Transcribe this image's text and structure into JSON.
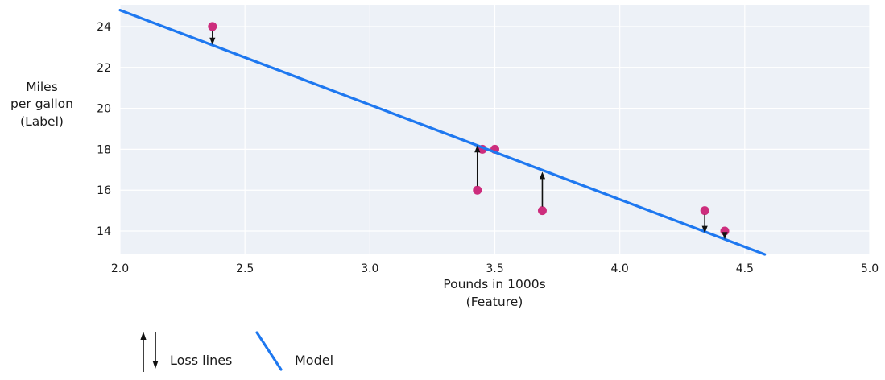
{
  "colors": {
    "model_line": "#1e78f0",
    "data_point": "#cd2d7d",
    "plot_background": "#edf1f7",
    "gridline": "#ffffff",
    "text": "#1a1a1a",
    "loss_arrow": "#111111",
    "page_background": "#ffffff"
  },
  "chart_data": {
    "type": "scatter",
    "title": "",
    "xlabel": "Pounds in 1000s\n(Feature)",
    "ylabel": "Miles\nper gallon\n(Label)",
    "xlim": [
      2.0,
      5.0
    ],
    "ylim": [
      12.86,
      25.06
    ],
    "grid": true,
    "legend_position": "below-left",
    "xticks": [
      {
        "value": 2.0,
        "label": "2.0"
      },
      {
        "value": 2.5,
        "label": "2.5"
      },
      {
        "value": 3.0,
        "label": "3.0"
      },
      {
        "value": 3.5,
        "label": "3.5"
      },
      {
        "value": 4.0,
        "label": "4.0"
      },
      {
        "value": 4.5,
        "label": "4.5"
      },
      {
        "value": 5.0,
        "label": "5.0"
      }
    ],
    "yticks": [
      {
        "value": 14,
        "label": "14"
      },
      {
        "value": 16,
        "label": "16"
      },
      {
        "value": 18,
        "label": "18"
      },
      {
        "value": 20,
        "label": "20"
      },
      {
        "value": 22,
        "label": "22"
      },
      {
        "value": 24,
        "label": "24"
      }
    ],
    "model_line": {
      "x1": 2.0,
      "y1": 24.8,
      "x2": 4.58,
      "y2": 12.86
    },
    "points": [
      {
        "x": 2.37,
        "y": 24,
        "loss_to": 23.1
      },
      {
        "x": 3.43,
        "y": 16,
        "loss_to": 18.2
      },
      {
        "x": 3.45,
        "y": 18,
        "loss_to": null
      },
      {
        "x": 3.5,
        "y": 18,
        "loss_to": null
      },
      {
        "x": 3.69,
        "y": 15,
        "loss_to": 16.9
      },
      {
        "x": 4.34,
        "y": 15,
        "loss_to": 13.9
      },
      {
        "x": 4.42,
        "y": 14,
        "loss_to": 13.6
      }
    ],
    "legend": {
      "loss_label": "Loss lines",
      "model_label": "Model"
    }
  }
}
